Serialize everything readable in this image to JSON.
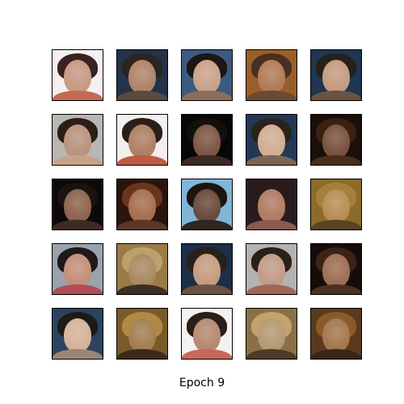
{
  "caption": "Epoch 9",
  "tiles": [
    {
      "bg": "#f3f0ef",
      "hair": "#3a2222",
      "face": "#c79a84",
      "shoulders": "#c26b52"
    },
    {
      "bg": "#24324a",
      "hair": "#2c241f",
      "face": "#b0846a",
      "shoulders": "#5b4a3d"
    },
    {
      "bg": "#3c5a80",
      "hair": "#1c1714",
      "face": "#caa28a",
      "shoulders": "#8b6d5d"
    },
    {
      "bg": "#9a5e2b",
      "hair": "#4a2f20",
      "face": "#b07c59",
      "shoulders": "#6d4a34"
    },
    {
      "bg": "#1f3551",
      "hair": "#25201c",
      "face": "#c49b80",
      "shoulders": "#6a5243"
    },
    {
      "bg": "#b8b7b4",
      "hair": "#2a1e17",
      "face": "#b9937e",
      "shoulders": "#c7a28a"
    },
    {
      "bg": "#f2efee",
      "hair": "#2a1e18",
      "face": "#b08064",
      "shoulders": "#bf5b45"
    },
    {
      "bg": "#090706",
      "hair": "#12100e",
      "face": "#7d5745",
      "shoulders": "#3b2a22"
    },
    {
      "bg": "#223855",
      "hair": "#2a221d",
      "face": "#d1ad93",
      "shoulders": "#7c6557"
    },
    {
      "bg": "#1a0f0a",
      "hair": "#3b2014",
      "face": "#7b5340",
      "shoulders": "#4a2d1f"
    },
    {
      "bg": "#0c0908",
      "hair": "#1a1310",
      "face": "#8e644f",
      "shoulders": "#3d2b22"
    },
    {
      "bg": "#2a140c",
      "hair": "#6b341d",
      "face": "#a4704f",
      "shoulders": "#5b3624"
    },
    {
      "bg": "#7fb6d8",
      "hair": "#1d1512",
      "face": "#6b4b3c",
      "shoulders": "#2f2620"
    },
    {
      "bg": "#2a1c1e",
      "hair": "#2a1a18",
      "face": "#b07c66",
      "shoulders": "#8a5a4d"
    },
    {
      "bg": "#8b6a2a",
      "hair": "#a67f3a",
      "face": "#b78e55",
      "shoulders": "#5a4326"
    },
    {
      "bg": "#9aa2ad",
      "hair": "#1f1a19",
      "face": "#c29079",
      "shoulders": "#b04d59"
    },
    {
      "bg": "#9a7b45",
      "hair": "#bba16a",
      "face": "#a88b63",
      "shoulders": "#3e2f22"
    },
    {
      "bg": "#1d2f47",
      "hair": "#2a201b",
      "face": "#c49c82",
      "shoulders": "#6c5243"
    },
    {
      "bg": "#b5b2b0",
      "hair": "#2a1f1b",
      "face": "#c39b87",
      "shoulders": "#a06658"
    },
    {
      "bg": "#150d0a",
      "hair": "#3c2217",
      "face": "#9f6e55",
      "shoulders": "#4a2f22"
    },
    {
      "bg": "#2b4360",
      "hair": "#1f1a17",
      "face": "#d4b39a",
      "shoulders": "#9a8574"
    },
    {
      "bg": "#7a5a2a",
      "hair": "#b08a45",
      "face": "#a37f52",
      "shoulders": "#3b2a1c"
    },
    {
      "bg": "#f4f2f1",
      "hair": "#2b1d18",
      "face": "#b58a73",
      "shoulders": "#c7685a"
    },
    {
      "bg": "#8a7046",
      "hair": "#c0a46b",
      "face": "#b59a72",
      "shoulders": "#4d3b27"
    },
    {
      "bg": "#5a3a1c",
      "hair": "#8a5a2a",
      "face": "#a3784f",
      "shoulders": "#3a2616"
    }
  ]
}
